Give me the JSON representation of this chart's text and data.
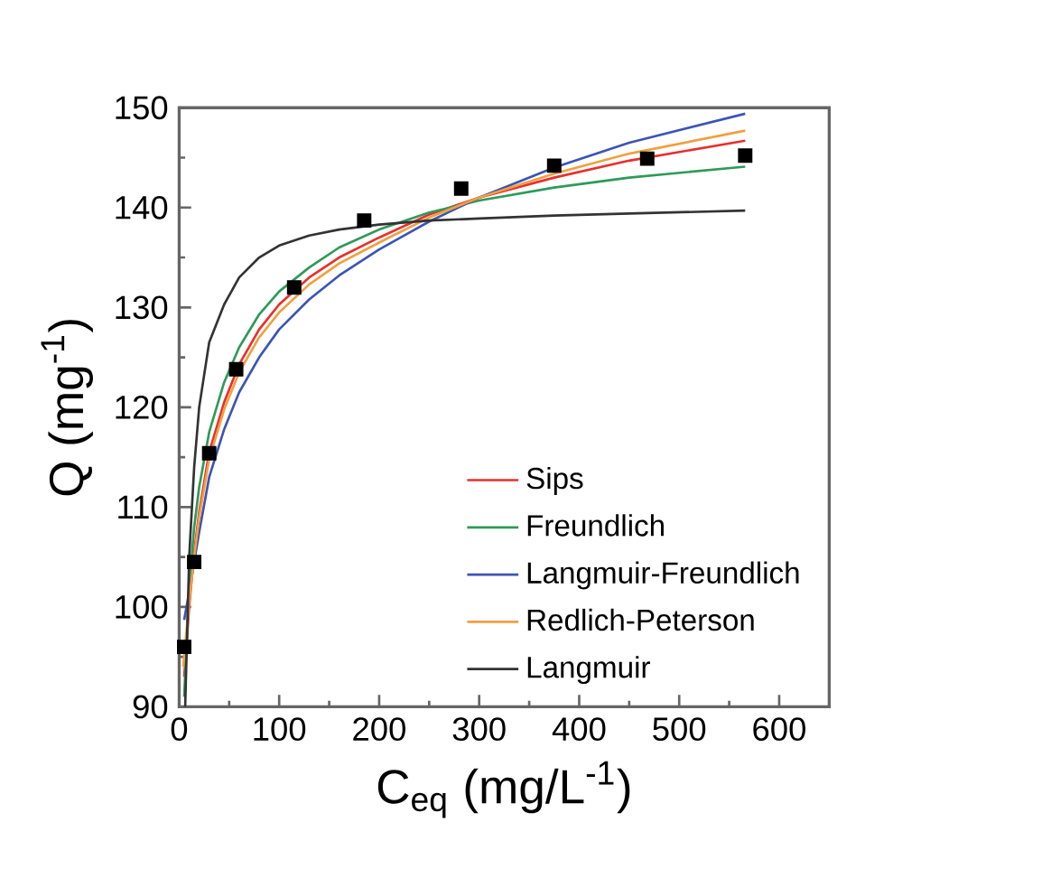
{
  "chart_data": {
    "type": "line",
    "xlabel": "C$_{eq}$ (mg/L$^{-1}$)",
    "ylabel": "Q (mg$^{-1}$)",
    "xlim": [
      0,
      650
    ],
    "ylim": [
      90,
      150
    ],
    "xticks": [
      0,
      100,
      200,
      300,
      400,
      500,
      600
    ],
    "yticks": [
      90,
      100,
      110,
      120,
      130,
      140,
      150
    ],
    "legend": "bottom right",
    "marker": "none",
    "line_style": "solid",
    "series": [
      {
        "type": "scatter",
        "marker": "square",
        "color": "#000000",
        "x": [
          5,
          15,
          30,
          57,
          115,
          185,
          282,
          375,
          468,
          566
        ],
        "values": [
          96.0,
          104.5,
          115.4,
          123.8,
          132.0,
          138.7,
          141.9,
          144.2,
          144.9,
          145.2
        ]
      },
      {
        "name": "Sips",
        "color": "#e8302c",
        "x": [
          5,
          10,
          15,
          20,
          30,
          45,
          60,
          80,
          100,
          130,
          160,
          200,
          250,
          300,
          375,
          450,
          566
        ],
        "values": [
          93,
          100,
          105.5,
          109.5,
          115.5,
          120.5,
          124.3,
          127.8,
          130.3,
          133,
          135,
          137,
          139.3,
          141,
          143,
          144.7,
          146.7
        ]
      },
      {
        "name": "Freundlich",
        "color": "#2e9a5a",
        "x": [
          5,
          10,
          15,
          20,
          30,
          45,
          60,
          80,
          100,
          130,
          160,
          200,
          250,
          300,
          375,
          450,
          566
        ],
        "values": [
          91,
          102,
          108,
          112,
          117.5,
          122.5,
          126,
          129.3,
          131.6,
          134,
          136,
          137.8,
          139.5,
          140.7,
          142,
          143,
          144.1
        ]
      },
      {
        "name": "Langmuir-Freundlich",
        "color": "#3b55b5",
        "x": [
          5,
          10,
          15,
          20,
          30,
          45,
          60,
          80,
          100,
          130,
          160,
          200,
          250,
          300,
          375,
          450,
          566
        ],
        "values": [
          98.7,
          101.5,
          104.5,
          107.5,
          113,
          117.8,
          121.5,
          125,
          127.8,
          130.8,
          133.2,
          135.8,
          138.6,
          141,
          144,
          146.5,
          149.4
        ]
      },
      {
        "name": "Redlich-Peterson",
        "color": "#f0a040",
        "x": [
          4,
          10,
          15,
          20,
          30,
          45,
          60,
          80,
          100,
          130,
          160,
          200,
          250,
          300,
          375,
          450,
          566
        ],
        "values": [
          94,
          100.5,
          105,
          109,
          114.8,
          119.8,
          123.5,
          127,
          129.5,
          132.3,
          134.4,
          136.5,
          139,
          141,
          143.4,
          145.4,
          147.7
        ]
      },
      {
        "name": "Langmuir",
        "color": "#333333",
        "x": [
          6,
          10,
          15,
          20,
          30,
          45,
          60,
          80,
          100,
          130,
          160,
          200,
          250,
          300,
          375,
          450,
          566
        ],
        "values": [
          90,
          105,
          114,
          120,
          126.5,
          130.3,
          133,
          135,
          136.2,
          137.2,
          137.8,
          138.3,
          138.7,
          138.9,
          139.2,
          139.4,
          139.7
        ]
      }
    ]
  }
}
